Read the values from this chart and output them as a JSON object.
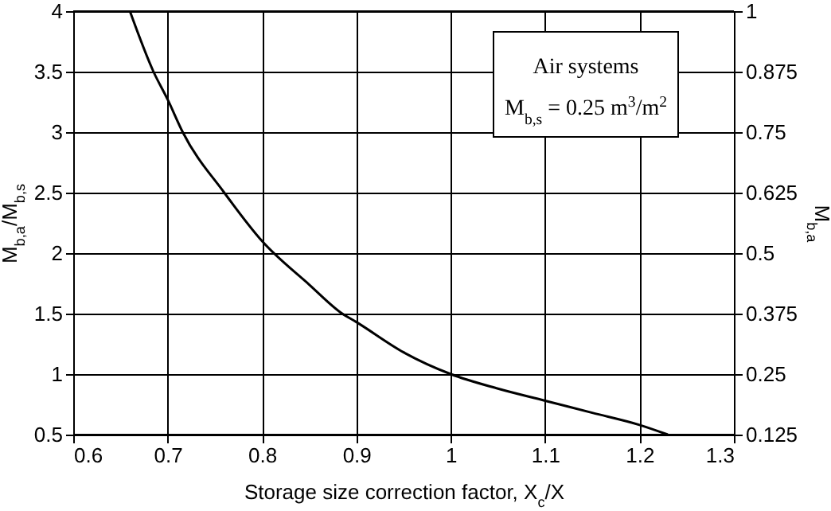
{
  "chart_data": {
    "type": "line",
    "xlabel": "Storage size correction factor, X$_{c}$/X",
    "ylabel": "M$_{b,a}$/M$_{b,s}$",
    "y2label": "M$_{b,a}$",
    "annotations": [
      "Air systems",
      "M$_{b,s}$ = 0.25 m$^{3}$/m$^{2}$"
    ],
    "series": [
      {
        "color": "#000000",
        "x": [
          0.66,
          0.685,
          0.7,
          0.716,
          0.76,
          0.8,
          0.85,
          0.885,
          0.9,
          0.95,
          1.0,
          1.05,
          1.1,
          1.15,
          1.2,
          1.23
        ],
        "values": [
          4,
          3.5,
          3.27,
          3,
          2.5,
          2.1,
          1.74,
          1.5,
          1.43,
          1.18,
          1.0,
          0.88,
          0.78,
          0.68,
          0.58,
          0.5
        ]
      }
    ],
    "xlim": [
      0.6,
      1.3
    ],
    "xticks": [
      0.6,
      0.7,
      0.8,
      0.9,
      1,
      1.1,
      1.2,
      1.3
    ],
    "ylim": [
      0.5,
      4
    ],
    "yticks": [
      0.5,
      1,
      1.5,
      2,
      2.5,
      3,
      3.5,
      4
    ],
    "y2lim": [
      0.125,
      1
    ],
    "y2ticks": [
      0.125,
      0.25,
      0.375,
      0.5,
      0.625,
      0.75,
      0.875,
      1
    ],
    "grid": true,
    "marker": "none",
    "line_style": "solid"
  }
}
